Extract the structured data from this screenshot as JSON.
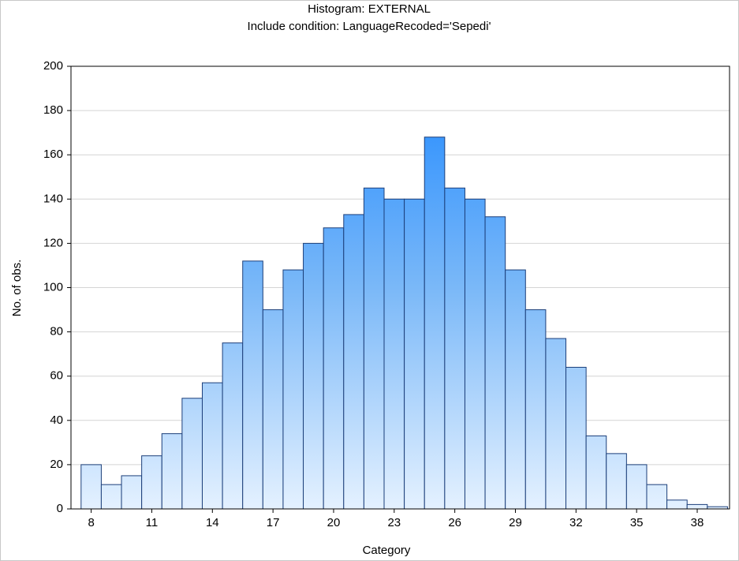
{
  "chart_data": {
    "type": "histogram",
    "title": "Histogram: EXTERNAL",
    "subtitle": "Include condition: LanguageRecoded='Sepedi'",
    "x_label": "Category",
    "y_label": "No. of obs.",
    "bins": [
      7.5,
      8.5,
      9.5,
      10.5,
      11.5,
      12.5,
      13.5,
      14.5,
      15.5,
      16.5,
      17.5,
      18.5,
      19.5,
      20.5,
      21.5,
      22.5,
      23.5,
      24.5,
      25.5,
      26.5,
      27.5,
      28.5,
      29.5,
      30.5,
      31.5,
      32.5,
      33.5,
      34.5,
      35.5,
      36.5,
      37.5,
      38.5,
      39.5
    ],
    "values": [
      20,
      11,
      15,
      24,
      34,
      50,
      57,
      75,
      112,
      90,
      108,
      120,
      127,
      133,
      145,
      140,
      140,
      168,
      145,
      140,
      132,
      108,
      90,
      77,
      64,
      33,
      25,
      20,
      11,
      4,
      2,
      1
    ],
    "xlim": [
      7,
      39.6
    ],
    "xticks": [
      8,
      11,
      14,
      17,
      20,
      23,
      26,
      29,
      32,
      35,
      38
    ],
    "ylim": [
      0,
      200
    ],
    "yticks": [
      0,
      20,
      40,
      60,
      80,
      100,
      120,
      140,
      160,
      180,
      200
    ],
    "grid": true,
    "color": "#1e88ff"
  }
}
